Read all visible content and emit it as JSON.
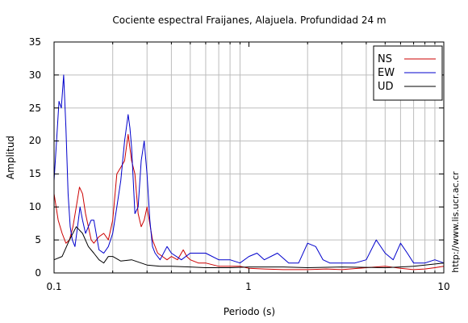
{
  "chart_data": {
    "type": "line",
    "title": "Cociente espectral Fraijanes, Alajuela. Profundidad 24 m",
    "xlabel": "Periodo (s)",
    "ylabel": "Amplitud",
    "xscale": "log",
    "xlim": [
      0.1,
      10
    ],
    "ylim": [
      0,
      35
    ],
    "x_ticks": [
      0.1,
      1,
      10
    ],
    "x_tick_labels": [
      "0.1",
      "1",
      "10"
    ],
    "y_ticks": [
      0,
      5,
      10,
      15,
      20,
      25,
      30,
      35
    ],
    "y_tick_labels": [
      "0",
      "5",
      "10",
      "15",
      "20",
      "25",
      "30",
      "35"
    ],
    "grid": true,
    "legend_position": "top-right",
    "side_note": "http://www.lis.ucr.ac.cr",
    "series": [
      {
        "name": "NS",
        "color": "#cc0000",
        "x": [
          0.1,
          0.105,
          0.11,
          0.115,
          0.12,
          0.125,
          0.13,
          0.135,
          0.14,
          0.145,
          0.15,
          0.155,
          0.16,
          0.17,
          0.18,
          0.19,
          0.2,
          0.21,
          0.22,
          0.23,
          0.24,
          0.25,
          0.26,
          0.27,
          0.28,
          0.29,
          0.3,
          0.32,
          0.34,
          0.36,
          0.38,
          0.4,
          0.43,
          0.46,
          0.48,
          0.5,
          0.55,
          0.6,
          0.7,
          0.8,
          0.9,
          1.0,
          1.2,
          1.5,
          2.0,
          2.5,
          3.0,
          4.0,
          5.0,
          6.0,
          7.0,
          8.0,
          9.0,
          10.0
        ],
        "y": [
          12,
          8,
          6,
          4.5,
          5,
          7,
          10,
          13,
          12,
          9,
          7,
          5,
          4.5,
          5.5,
          6,
          5,
          8,
          15,
          16,
          17,
          21,
          17,
          15,
          9,
          7,
          8,
          10,
          5,
          3,
          2.5,
          2,
          2.5,
          2,
          3.5,
          2.5,
          2,
          1.5,
          1.5,
          1,
          1,
          1,
          0.7,
          0.6,
          0.5,
          0.5,
          0.6,
          0.5,
          0.8,
          1,
          0.7,
          0.5,
          0.6,
          0.8,
          1
        ]
      },
      {
        "name": "EW",
        "color": "#0000cc",
        "x": [
          0.1,
          0.103,
          0.106,
          0.109,
          0.112,
          0.115,
          0.118,
          0.121,
          0.124,
          0.128,
          0.132,
          0.136,
          0.14,
          0.145,
          0.15,
          0.155,
          0.16,
          0.17,
          0.18,
          0.19,
          0.2,
          0.21,
          0.22,
          0.23,
          0.24,
          0.245,
          0.25,
          0.26,
          0.27,
          0.28,
          0.29,
          0.3,
          0.31,
          0.32,
          0.33,
          0.35,
          0.38,
          0.4,
          0.45,
          0.5,
          0.6,
          0.7,
          0.8,
          0.9,
          1.0,
          1.1,
          1.2,
          1.4,
          1.6,
          1.8,
          2.0,
          2.2,
          2.4,
          2.6,
          3.0,
          3.5,
          4.0,
          4.5,
          5.0,
          5.5,
          6.0,
          6.5,
          7.0,
          8.0,
          9.0,
          10.0
        ],
        "y": [
          14,
          20,
          26,
          25,
          30,
          22,
          12,
          7,
          5,
          4,
          7,
          10,
          8,
          6,
          7,
          8,
          8,
          3.5,
          3,
          4,
          6,
          10,
          14,
          20,
          24,
          22,
          19,
          9,
          10,
          17,
          20,
          15,
          8,
          4,
          3,
          2,
          4,
          3,
          2,
          3,
          3,
          2,
          2,
          1.5,
          2.5,
          3,
          2,
          3,
          1.5,
          1.5,
          4.5,
          4,
          2,
          1.5,
          1.5,
          1.5,
          2,
          5,
          3,
          2,
          4.5,
          3,
          1.5,
          1.5,
          2,
          1.5
        ]
      },
      {
        "name": "UD",
        "color": "#000000",
        "x": [
          0.1,
          0.11,
          0.12,
          0.13,
          0.14,
          0.15,
          0.16,
          0.17,
          0.18,
          0.19,
          0.2,
          0.22,
          0.25,
          0.3,
          0.35,
          0.4,
          0.5,
          0.6,
          0.8,
          1.0,
          1.5,
          2.0,
          3.0,
          5.0,
          7.0,
          10.0
        ],
        "y": [
          2,
          2.5,
          5,
          7,
          6,
          4,
          3,
          2,
          1.5,
          2.5,
          2.5,
          1.8,
          2,
          1.2,
          1,
          1,
          0.9,
          0.8,
          0.8,
          0.9,
          0.9,
          0.8,
          0.9,
          0.8,
          1,
          1.5
        ]
      }
    ]
  }
}
